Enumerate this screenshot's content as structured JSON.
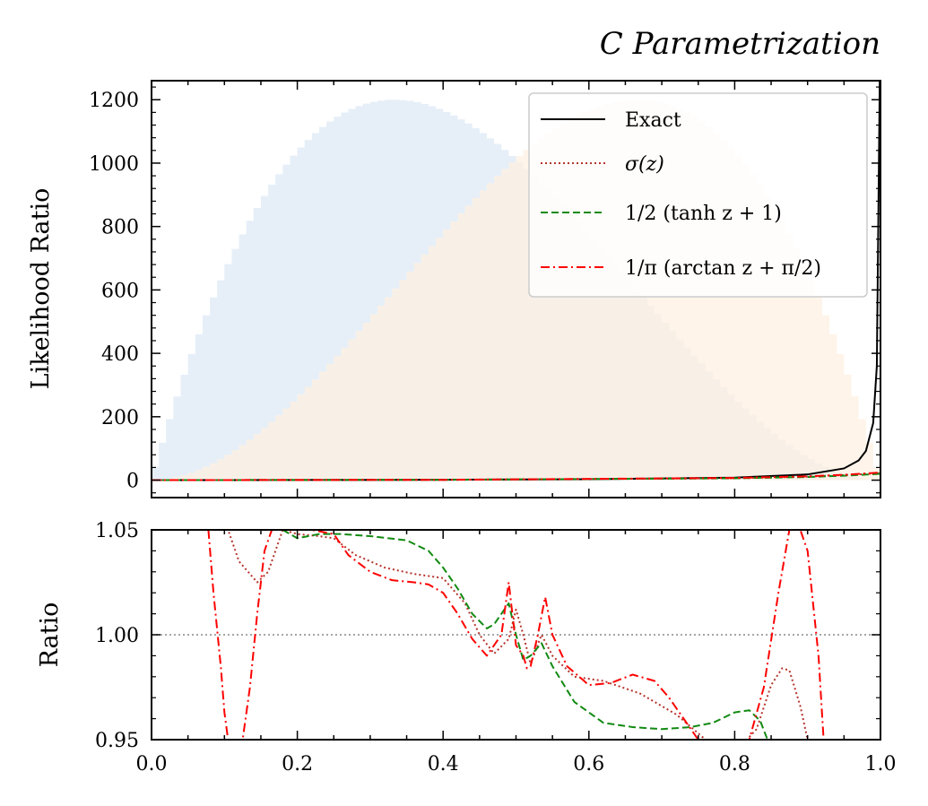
{
  "title": "C Parametrization",
  "chart_data": [
    {
      "type": "line",
      "panel": "top",
      "ylabel": "Likelihood Ratio",
      "xlim": [
        0.0,
        1.0
      ],
      "ylim": [
        -55,
        1260
      ],
      "yticks": [
        0,
        200,
        400,
        600,
        800,
        1000,
        1200
      ],
      "ytick_labels": [
        "0",
        "200",
        "400",
        "600",
        "800",
        "1000",
        "1200"
      ],
      "legend_position": "top-right",
      "background_histograms": [
        {
          "shape": "Beta(2,3)-like density",
          "peak_x": 0.333,
          "peak": 1200,
          "color": "#e6eff8"
        },
        {
          "shape": "Beta(3,2)-like density",
          "peak_x": 0.667,
          "peak": 1200,
          "color": "#fdf0e2"
        }
      ],
      "series": [
        {
          "name": "Exact",
          "color": "#000000",
          "style": "solid",
          "x": [
            0.0,
            0.2,
            0.4,
            0.6,
            0.8,
            0.9,
            0.95,
            0.97,
            0.98,
            0.99,
            0.995,
            0.999
          ],
          "y": [
            0,
            0.4,
            1.3,
            3,
            8,
            18,
            37,
            62,
            92,
            180,
            360,
            1300
          ]
        },
        {
          "name": "σ(z)",
          "color": "#b5352d",
          "style": "dotted",
          "x": [
            0.0,
            0.4,
            0.8,
            0.9,
            0.95,
            1.0
          ],
          "y": [
            0,
            1,
            6,
            11,
            16,
            22
          ]
        },
        {
          "name": "½ (tanh z + 1)",
          "color": "#128a12",
          "style": "dashed",
          "x": [
            0.0,
            0.4,
            0.8,
            0.9,
            0.95,
            1.0
          ],
          "y": [
            0,
            1,
            6,
            10,
            14,
            20
          ]
        },
        {
          "name": "1/π (arctan z + π/2)",
          "color": "#ff0000",
          "style": "dashdot",
          "x": [
            0.0,
            0.4,
            0.8,
            0.9,
            0.95,
            1.0
          ],
          "y": [
            0,
            1,
            7,
            12,
            17,
            24
          ]
        }
      ]
    },
    {
      "type": "line",
      "panel": "bottom",
      "ylabel": "Ratio",
      "xlim": [
        0.0,
        1.0
      ],
      "ylim": [
        0.95,
        1.05
      ],
      "xticks": [
        0.0,
        0.2,
        0.4,
        0.6,
        0.8,
        1.0
      ],
      "xtick_labels": [
        "0.0",
        "0.2",
        "0.4",
        "0.6",
        "0.8",
        "1.0"
      ],
      "yticks": [
        0.95,
        1.0,
        1.05
      ],
      "ytick_labels": [
        "0.95",
        "1.00",
        "1.05"
      ],
      "reference_line": 1.0,
      "series": [
        {
          "name": "σ(z)",
          "color": "#b5352d",
          "style": "dotted",
          "x": [
            0.08,
            0.1,
            0.12,
            0.145,
            0.16,
            0.18,
            0.2,
            0.23,
            0.25,
            0.28,
            0.32,
            0.36,
            0.4,
            0.43,
            0.45,
            0.47,
            0.49,
            0.5,
            0.51,
            0.52,
            0.535,
            0.55,
            0.58,
            0.62,
            0.67,
            0.72,
            0.76,
            0.79,
            0.83,
            0.85,
            0.865,
            0.875,
            0.89,
            0.9
          ],
          "y": [
            1.06,
            1.055,
            1.035,
            1.025,
            1.03,
            1.05,
            1.048,
            1.047,
            1.046,
            1.038,
            1.032,
            1.029,
            1.027,
            1.015,
            1.0,
            0.991,
            0.998,
            1.012,
            1.0,
            0.986,
            1.0,
            0.99,
            0.98,
            0.978,
            0.972,
            0.962,
            0.95,
            0.94,
            0.955,
            0.976,
            0.984,
            0.983,
            0.966,
            0.95
          ]
        },
        {
          "name": "½ (tanh z + 1)",
          "color": "#128a12",
          "style": "dashed",
          "x": [
            0.18,
            0.2,
            0.23,
            0.26,
            0.3,
            0.35,
            0.38,
            0.4,
            0.42,
            0.44,
            0.46,
            0.47,
            0.49,
            0.5,
            0.51,
            0.52,
            0.535,
            0.55,
            0.58,
            0.62,
            0.66,
            0.7,
            0.74,
            0.77,
            0.8,
            0.82,
            0.835,
            0.845
          ],
          "y": [
            1.05,
            1.046,
            1.048,
            1.048,
            1.047,
            1.045,
            1.04,
            1.032,
            1.022,
            1.01,
            1.003,
            1.005,
            1.015,
            1.0,
            0.988,
            0.99,
            0.996,
            0.985,
            0.968,
            0.958,
            0.956,
            0.955,
            0.956,
            0.958,
            0.963,
            0.964,
            0.959,
            0.95
          ]
        },
        {
          "name": "1/π (arctan z + π/2)",
          "color": "#ff0000",
          "style": "dashdot",
          "x": [
            0.078,
            0.085,
            0.095,
            0.1,
            0.105,
            0.125,
            0.135,
            0.145,
            0.155,
            0.165,
            0.175,
            0.22,
            0.25,
            0.27,
            0.3,
            0.33,
            0.36,
            0.38,
            0.4,
            0.42,
            0.44,
            0.46,
            0.48,
            0.49,
            0.495,
            0.5,
            0.51,
            0.515,
            0.52,
            0.53,
            0.54,
            0.55,
            0.57,
            0.6,
            0.63,
            0.66,
            0.69,
            0.71,
            0.73,
            0.75,
            0.82,
            0.84,
            0.86,
            0.87,
            0.875,
            0.89,
            0.9,
            0.915,
            0.922
          ],
          "y": [
            1.05,
            1.02,
            0.985,
            0.963,
            0.95,
            0.95,
            0.975,
            1.01,
            1.04,
            1.05,
            1.05,
            1.05,
            1.048,
            1.038,
            1.03,
            1.026,
            1.025,
            1.024,
            1.02,
            1.01,
            0.998,
            0.99,
            1.0,
            1.025,
            1.01,
            0.995,
            0.99,
            0.984,
            0.985,
            1.0,
            1.018,
            1.0,
            0.985,
            0.976,
            0.977,
            0.981,
            0.978,
            0.97,
            0.96,
            0.95,
            0.95,
            0.975,
            1.02,
            1.04,
            1.05,
            1.05,
            1.04,
            0.99,
            0.95
          ]
        }
      ]
    }
  ],
  "legend": [
    {
      "label": "Exact",
      "color": "#000000",
      "style": "solid"
    },
    {
      "label": "σ(z)",
      "color": "#b5352d",
      "style": "dotted"
    },
    {
      "label": "1/2 (tanh z + 1)",
      "color": "#128a12",
      "style": "dashed"
    },
    {
      "label": "1/π (arctan z + π/2)",
      "color": "#ff0000",
      "style": "dashdot"
    }
  ]
}
